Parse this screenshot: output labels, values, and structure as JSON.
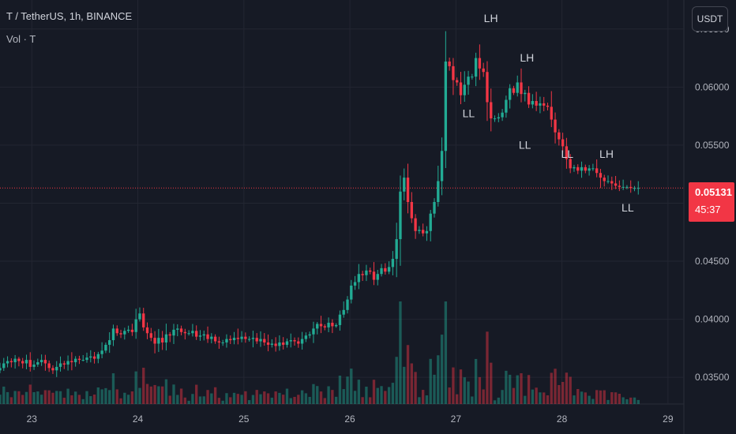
{
  "header": {
    "symbol_line": "T / TetherUS, 1h, BINANCE",
    "volume_label": "Vol · T"
  },
  "currency_button": "USDT",
  "last_price": {
    "price": "0.05131",
    "countdown": "45:37"
  },
  "colors": {
    "up": "#22ab94",
    "down": "#f23645",
    "background": "#161a25",
    "grid": "#232632",
    "text": "#b2b5be"
  },
  "chart_data": {
    "type": "candlestick",
    "x_tick_labels": [
      "23",
      "24",
      "25",
      "26",
      "27",
      "28",
      "29"
    ],
    "y_tick_labels": [
      "0.03500",
      "0.04000",
      "0.04500",
      "0.05000",
      "0.05500",
      "0.06000",
      "0.06500"
    ],
    "ylim": [
      0.0327,
      0.0675
    ],
    "xlim_days": [
      22.7,
      29.15
    ],
    "grid": true,
    "current_price": 0.05131,
    "annotations": [
      {
        "text": "LH",
        "x": 27.33,
        "y": 0.0656
      },
      {
        "text": "LL",
        "x": 27.12,
        "y": 0.0574
      },
      {
        "text": "LH",
        "x": 27.67,
        "y": 0.0622
      },
      {
        "text": "LL",
        "x": 27.65,
        "y": 0.0547
      },
      {
        "text": "LL",
        "x": 28.05,
        "y": 0.0539
      },
      {
        "text": "LH",
        "x": 28.42,
        "y": 0.0539
      },
      {
        "text": "LL",
        "x": 28.62,
        "y": 0.0493
      }
    ],
    "series": [
      {
        "name": "T",
        "close": [
          0.0358,
          0.0362,
          0.0364,
          0.0363,
          0.0366,
          0.0364,
          0.0362,
          0.0365,
          0.0359,
          0.0361,
          0.0363,
          0.0365,
          0.0362,
          0.0358,
          0.0356,
          0.0359,
          0.0362,
          0.0361,
          0.0364,
          0.0363,
          0.0366,
          0.0365,
          0.0365,
          0.0367,
          0.0368,
          0.0366,
          0.037,
          0.0373,
          0.0378,
          0.0382,
          0.0392,
          0.0388,
          0.0387,
          0.039,
          0.0391,
          0.0389,
          0.04,
          0.0405,
          0.0393,
          0.0388,
          0.0384,
          0.0379,
          0.0384,
          0.038,
          0.0387,
          0.0386,
          0.0391,
          0.0392,
          0.0389,
          0.0388,
          0.0388,
          0.039,
          0.0385,
          0.0386,
          0.0387,
          0.0383,
          0.0385,
          0.0381,
          0.038,
          0.038,
          0.0383,
          0.0382,
          0.0384,
          0.0383,
          0.0385,
          0.0383,
          0.0383,
          0.0384,
          0.0381,
          0.0383,
          0.038,
          0.0378,
          0.0379,
          0.0377,
          0.038,
          0.0378,
          0.0381,
          0.0382,
          0.0381,
          0.0379,
          0.0383,
          0.0386,
          0.0387,
          0.0392,
          0.0396,
          0.0394,
          0.0393,
          0.0397,
          0.0394,
          0.0395,
          0.0404,
          0.0408,
          0.0417,
          0.0429,
          0.0432,
          0.0439,
          0.0438,
          0.0442,
          0.0441,
          0.0434,
          0.0439,
          0.0444,
          0.0441,
          0.0445,
          0.0452,
          0.0469,
          0.051,
          0.0522,
          0.0501,
          0.0487,
          0.0476,
          0.0477,
          0.0474,
          0.0476,
          0.0491,
          0.0501,
          0.0519,
          0.0545,
          0.0622,
          0.0618,
          0.0606,
          0.0604,
          0.0593,
          0.0602,
          0.0609,
          0.0609,
          0.0625,
          0.0616,
          0.0613,
          0.0587,
          0.0573,
          0.0573,
          0.0574,
          0.0578,
          0.0589,
          0.0599,
          0.0595,
          0.0604,
          0.0594,
          0.0595,
          0.0585,
          0.0588,
          0.0584,
          0.0586,
          0.0584,
          0.0583,
          0.0572,
          0.0561,
          0.0555,
          0.0549,
          0.0538,
          0.053,
          0.0531,
          0.0528,
          0.0531,
          0.0528,
          0.053,
          0.053,
          0.0526,
          0.0522,
          0.0519,
          0.0519,
          0.0517,
          0.0515,
          0.0514,
          0.0514,
          0.0514,
          0.0513,
          0.0513,
          0.05131
        ]
      }
    ]
  }
}
